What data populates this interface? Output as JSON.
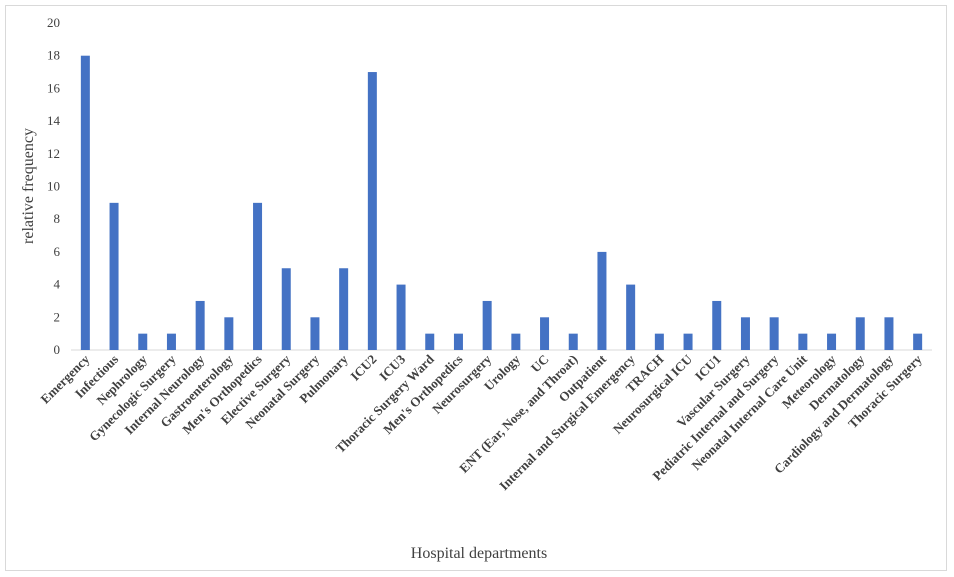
{
  "chart_data": {
    "type": "bar",
    "title": "",
    "xlabel": "Hospital departments",
    "ylabel": "relative frequency",
    "ylim": [
      0,
      20
    ],
    "yticks": [
      "0",
      "2",
      "4",
      "6",
      "8",
      "10",
      "12",
      "14",
      "16",
      "18",
      "20"
    ],
    "grid": false,
    "legend": "none",
    "bar_color": "#4472C4",
    "categories": [
      "Emergency",
      "Infectious",
      "Nephrology",
      "Gynecologic Surgery",
      "Internal Neurology",
      "Gastroenterology",
      "Men's Orthopedics",
      "Elective Surgery",
      "Neonatal Surgery",
      "Pulmonary",
      "ICU2",
      "ICU3",
      "Thoracic Surgery Ward",
      "Men's Orthopedics",
      "Neurosurgery",
      "Urology",
      "UC",
      "ENT (Ear, Nose, and Throat)",
      "Outpatient",
      "Internal and Surgical Emergency",
      "TRACH",
      "Neurosurgical ICU",
      "ICU1",
      "Vascular Surgery",
      "Pediatric Internal and Surgery",
      "Neonatal Internal Care Unit",
      "Meteorology",
      "Dermatology",
      "Cardiology and Dermatology",
      "Thoracic Surgery"
    ],
    "values": [
      18,
      9,
      1,
      1,
      3,
      2,
      9,
      5,
      2,
      5,
      17,
      4,
      1,
      1,
      3,
      1,
      2,
      1,
      6,
      4,
      1,
      1,
      3,
      2,
      2,
      1,
      1,
      2,
      2,
      1
    ]
  }
}
